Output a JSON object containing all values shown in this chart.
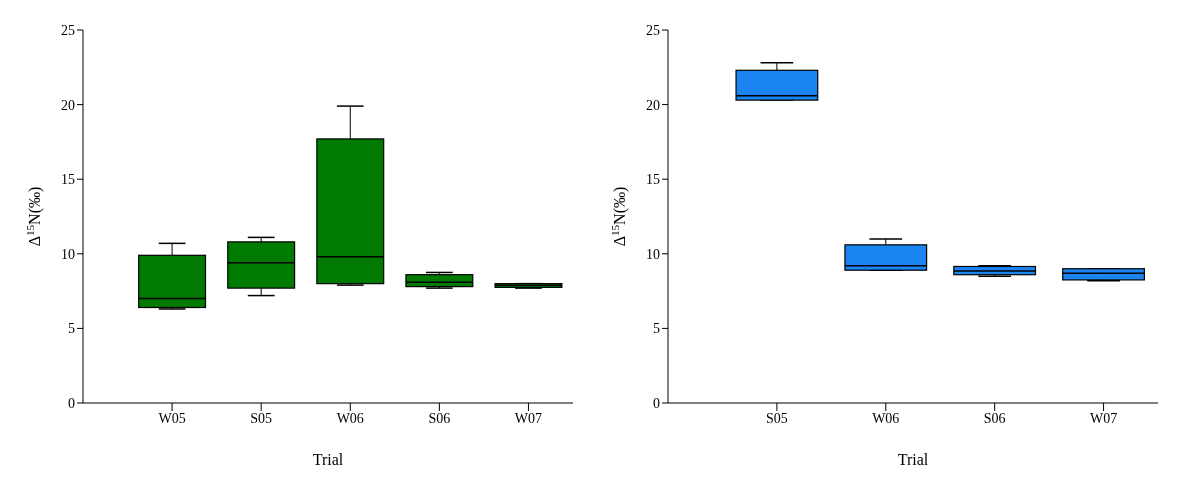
{
  "chart_data": [
    {
      "type": "box",
      "xlabel": "Trial",
      "ylabel": "Δ$^{15}$N(‰)",
      "categories": [
        "W05",
        "S05",
        "W06",
        "S06",
        "W07"
      ],
      "color": "#007a00",
      "ylim": [
        0,
        25
      ],
      "yticks": [
        0,
        5,
        10,
        15,
        20,
        25
      ],
      "grid": false,
      "boxes": [
        {
          "low": 6.3,
          "q1": 6.4,
          "median": 7.0,
          "q3": 9.9,
          "high": 10.7
        },
        {
          "low": 7.2,
          "q1": 7.7,
          "median": 9.4,
          "q3": 10.8,
          "high": 11.1
        },
        {
          "low": 7.9,
          "q1": 8.0,
          "median": 9.8,
          "q3": 17.7,
          "high": 19.9
        },
        {
          "low": 7.7,
          "q1": 7.8,
          "median": 8.1,
          "q3": 8.6,
          "high": 8.75
        },
        {
          "low": 7.7,
          "q1": 7.75,
          "median": 7.9,
          "q3": 8.0,
          "high": 8.0
        }
      ]
    },
    {
      "type": "box",
      "xlabel": "Trial",
      "ylabel": "Δ$^{15}$N(‰)",
      "categories": [
        "S05",
        "W06",
        "S06",
        "W07"
      ],
      "color": "#1a85f0",
      "ylim": [
        0,
        25
      ],
      "yticks": [
        0,
        5,
        10,
        15,
        20,
        25
      ],
      "grid": false,
      "boxes": [
        {
          "low": 20.3,
          "q1": 20.3,
          "median": 20.6,
          "q3": 22.3,
          "high": 22.8
        },
        {
          "low": 8.9,
          "q1": 8.9,
          "median": 9.2,
          "q3": 10.6,
          "high": 11.0
        },
        {
          "low": 8.5,
          "q1": 8.6,
          "median": 8.85,
          "q3": 9.15,
          "high": 9.2
        },
        {
          "low": 8.2,
          "q1": 8.25,
          "median": 8.7,
          "q3": 9.0,
          "high": 9.0
        }
      ]
    }
  ]
}
